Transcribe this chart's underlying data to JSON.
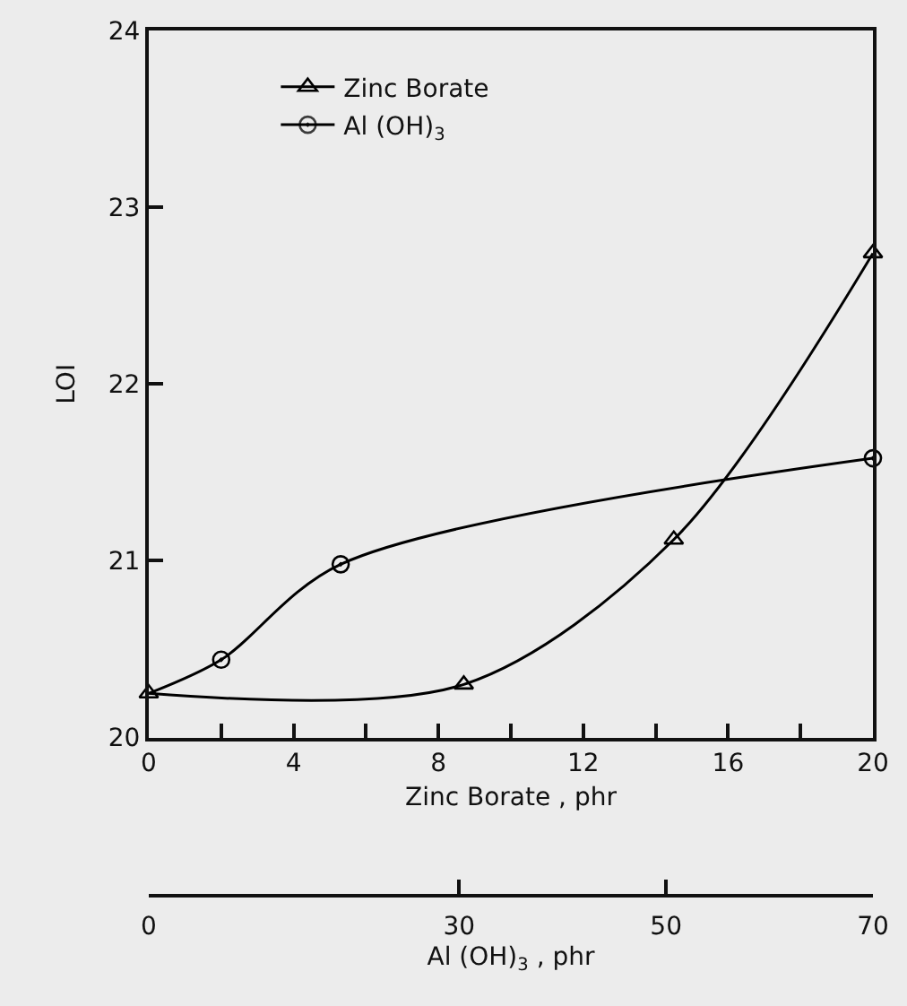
{
  "chart_data": {
    "type": "line",
    "xlabel": "Zinc Borate , phr",
    "ylabel": "LOI",
    "x2label": "Al (OH)$_{3}$ , phr",
    "series": [
      {
        "name": "Zinc Borate",
        "color": "#000000",
        "marker": "triangle",
        "x": [
          0,
          8.7,
          14.5,
          20
        ],
        "values": [
          20.25,
          20.3,
          21.12,
          22.74
        ]
      },
      {
        "name": "Al (OH)$_{3}$",
        "color": "#000000",
        "marker": "circle",
        "x": [
          0,
          2.0,
          5.3,
          20
        ],
        "values": [
          20.25,
          20.44,
          20.98,
          21.58
        ]
      }
    ],
    "xlim": [
      0,
      20
    ],
    "xticks": [
      0,
      {
        "value": 2,
        "label": null
      },
      4,
      {
        "value": 6,
        "label": null
      },
      8,
      {
        "value": 10,
        "label": null
      },
      12,
      {
        "value": 14,
        "label": null
      },
      16,
      {
        "value": 18,
        "label": null
      },
      20
    ],
    "x2lim": [
      0,
      70
    ],
    "x2ticks": [
      0,
      30,
      50,
      70
    ],
    "ylim": [
      20,
      24
    ],
    "yticks": [
      20,
      21,
      22,
      23,
      24
    ],
    "grid": false,
    "legend": "top left",
    "line_style": "solid"
  }
}
